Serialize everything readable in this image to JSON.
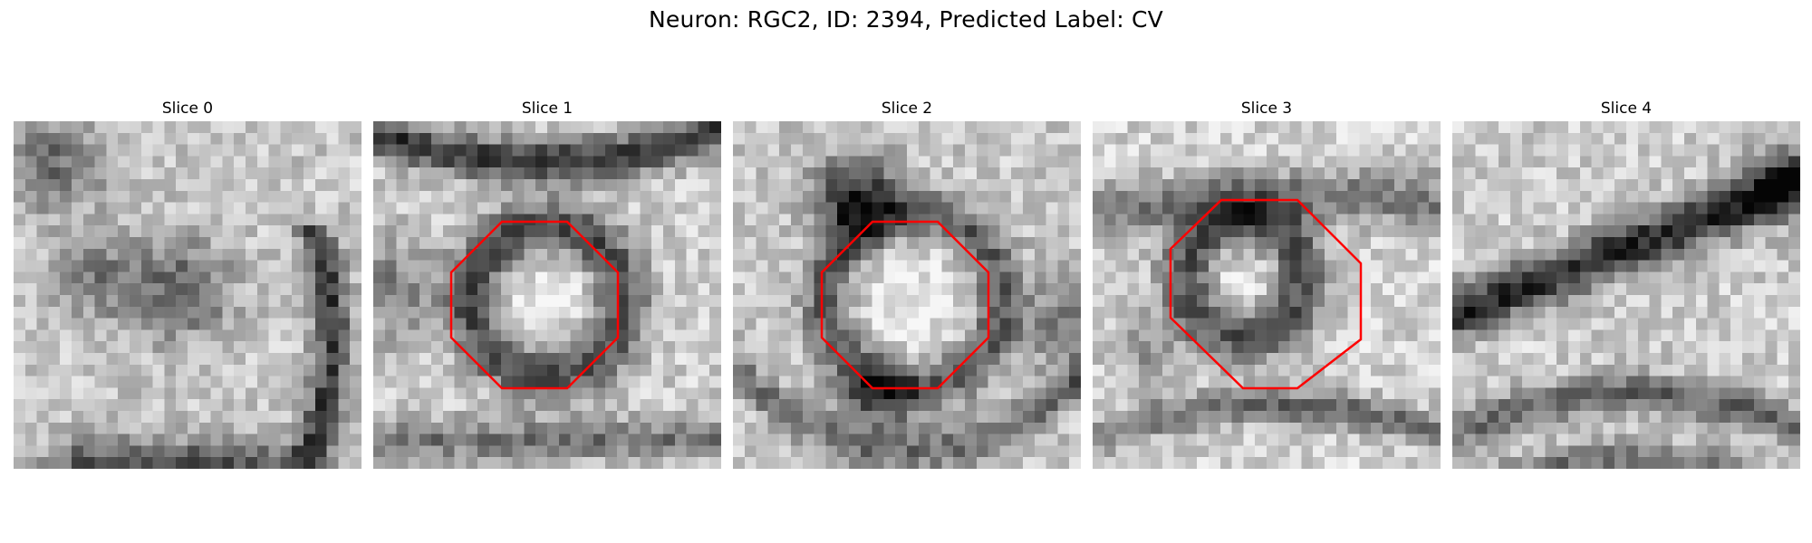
{
  "figure": {
    "title": "Neuron: RGC2, ID: 2394, Predicted Label: CV"
  },
  "colors": {
    "background": "#ffffff",
    "outline": "#ff0000"
  },
  "panels": [
    {
      "title": "Slice 0",
      "has_outline": false
    },
    {
      "title": "Slice 1",
      "has_outline": true
    },
    {
      "title": "Slice 2",
      "has_outline": true
    },
    {
      "title": "Slice 3",
      "has_outline": true
    },
    {
      "title": "Slice 4",
      "has_outline": false
    }
  ]
}
